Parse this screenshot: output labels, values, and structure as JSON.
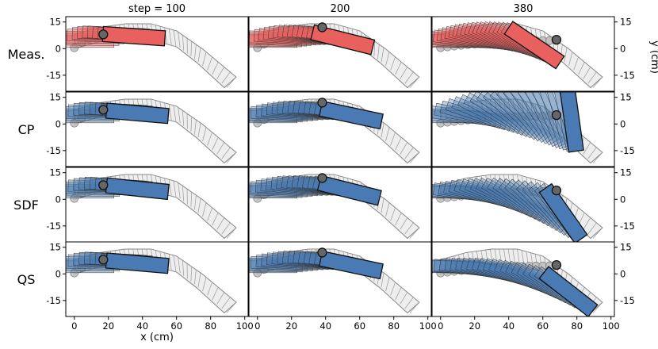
{
  "chart_data": {
    "type": "scatter",
    "layout": "grid",
    "columns": [
      "step = 100",
      "200",
      "380"
    ],
    "rows": [
      "Meas.",
      "CP",
      "SDF",
      "QS"
    ],
    "xlabel": "x (cm)",
    "ylabel": "y (cm)",
    "xlim": [
      -5,
      102
    ],
    "ylim": [
      -24,
      18
    ],
    "xticks": [
      0,
      20,
      40,
      60,
      80,
      100
    ],
    "yticks": [
      15,
      0,
      -15
    ],
    "colors": {
      "measured": "#e8615f",
      "model": "#4a7ab3",
      "robot": "#888888",
      "frame": "#000000"
    },
    "robot_arm": {
      "upper_edge": [
        [
          0,
          8
        ],
        [
          15,
          12
        ],
        [
          30,
          14
        ],
        [
          45,
          14
        ],
        [
          60,
          10
        ],
        [
          75,
          0
        ],
        [
          95,
          -16
        ]
      ],
      "lower_edge": [
        [
          0,
          0
        ],
        [
          15,
          4
        ],
        [
          30,
          6
        ],
        [
          45,
          5
        ],
        [
          60,
          1
        ],
        [
          72,
          -8
        ],
        [
          88,
          -22
        ]
      ]
    },
    "panels": [
      {
        "row": "Meas.",
        "column": "step = 100",
        "contact_point": [
          17,
          8
        ],
        "box_center": [
          35,
          7
        ],
        "box_angle_deg": -4
      },
      {
        "row": "Meas.",
        "column": "200",
        "contact_point": [
          38,
          12
        ],
        "box_center": [
          50,
          5
        ],
        "box_angle_deg": -14
      },
      {
        "row": "Meas.",
        "column": "380",
        "contact_point": [
          68,
          5
        ],
        "box_center": [
          55,
          2
        ],
        "box_angle_deg": -34
      },
      {
        "row": "CP",
        "column": "step = 100",
        "contact_point": [
          17,
          8
        ],
        "box_center": [
          37,
          6
        ],
        "box_angle_deg": -5
      },
      {
        "row": "CP",
        "column": "200",
        "contact_point": [
          38,
          12
        ],
        "box_center": [
          55,
          5
        ],
        "box_angle_deg": -12
      },
      {
        "row": "CP",
        "column": "380",
        "contact_point": [
          68,
          5
        ],
        "box_center": [
          77,
          2
        ],
        "box_angle_deg": -82
      },
      {
        "row": "SDF",
        "column": "step = 100",
        "contact_point": [
          17,
          8
        ],
        "box_center": [
          37,
          6
        ],
        "box_angle_deg": -6
      },
      {
        "row": "SDF",
        "column": "200",
        "contact_point": [
          38,
          12
        ],
        "box_center": [
          54,
          5
        ],
        "box_angle_deg": -14
      },
      {
        "row": "SDF",
        "column": "380",
        "contact_point": [
          68,
          5
        ],
        "box_center": [
          72,
          -8
        ],
        "box_angle_deg": -55
      },
      {
        "row": "QS",
        "column": "step = 100",
        "contact_point": [
          17,
          8
        ],
        "box_center": [
          37,
          6
        ],
        "box_angle_deg": -5
      },
      {
        "row": "QS",
        "column": "200",
        "contact_point": [
          38,
          12
        ],
        "box_center": [
          55,
          5
        ],
        "box_angle_deg": -12
      },
      {
        "row": "QS",
        "column": "380",
        "contact_point": [
          68,
          5
        ],
        "box_center": [
          75,
          -10
        ],
        "box_angle_deg": -38
      }
    ]
  }
}
